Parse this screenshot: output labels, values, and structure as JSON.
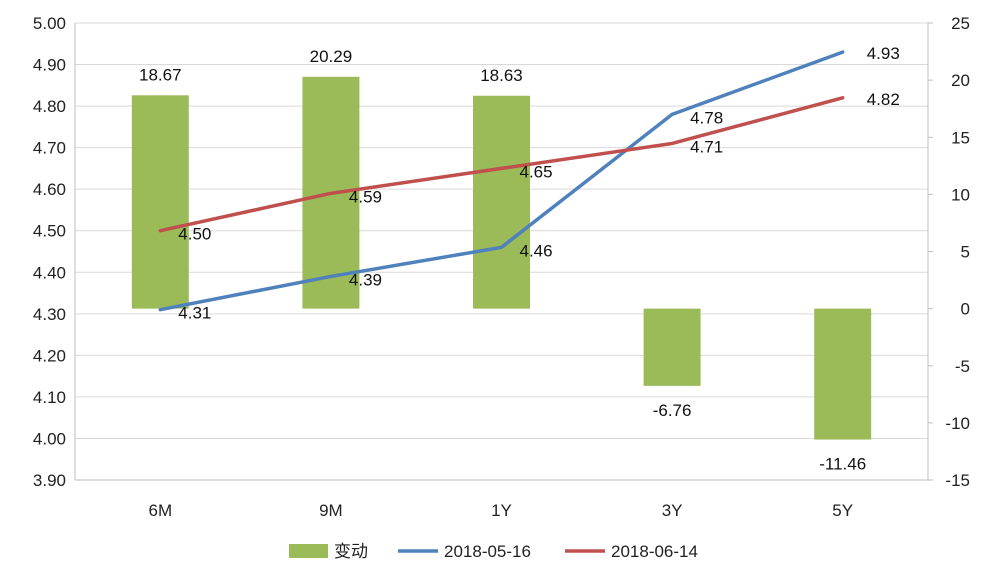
{
  "chart_data": {
    "type": "bar+line",
    "categories": [
      "6M",
      "9M",
      "1Y",
      "3Y",
      "5Y"
    ],
    "bar_series": {
      "name": "变动",
      "axis": "right",
      "color": "#9bbb59",
      "values": [
        18.67,
        20.29,
        18.63,
        -6.76,
        -11.46
      ],
      "labels": [
        "18.67",
        "20.29",
        "18.63",
        "-6.76",
        "-11.46"
      ]
    },
    "line_series": [
      {
        "name": "2018-05-16",
        "axis": "left",
        "color": "#4f81bd",
        "values": [
          4.31,
          4.39,
          4.46,
          4.78,
          4.93
        ],
        "labels": [
          "4.31",
          "4.39",
          "4.46",
          "4.78",
          "4.93"
        ]
      },
      {
        "name": "2018-06-14",
        "axis": "left",
        "color": "#c0504d",
        "values": [
          4.5,
          4.59,
          4.65,
          4.71,
          4.82
        ],
        "labels": [
          "4.50",
          "4.59",
          "4.65",
          "4.71",
          "4.82"
        ]
      }
    ],
    "left_axis": {
      "ylim": [
        3.9,
        5.0
      ],
      "ticks": [
        3.9,
        4.0,
        4.1,
        4.2,
        4.3,
        4.4,
        4.5,
        4.6,
        4.7,
        4.8,
        4.9,
        5.0
      ],
      "tick_labels": [
        "3.90",
        "4.00",
        "4.10",
        "4.20",
        "4.30",
        "4.40",
        "4.50",
        "4.60",
        "4.70",
        "4.80",
        "4.90",
        "5.00"
      ]
    },
    "right_axis": {
      "ylim": [
        -15,
        25
      ],
      "ticks": [
        -15,
        -10,
        -5,
        0,
        5,
        10,
        15,
        20,
        25
      ],
      "tick_labels": [
        "-15",
        "-10",
        "-5",
        "0",
        "5",
        "10",
        "15",
        "20",
        "25"
      ]
    },
    "grid": true,
    "legend": {
      "placement": "bottom",
      "entries": [
        "变动",
        "2018-05-16",
        "2018-06-14"
      ]
    }
  }
}
